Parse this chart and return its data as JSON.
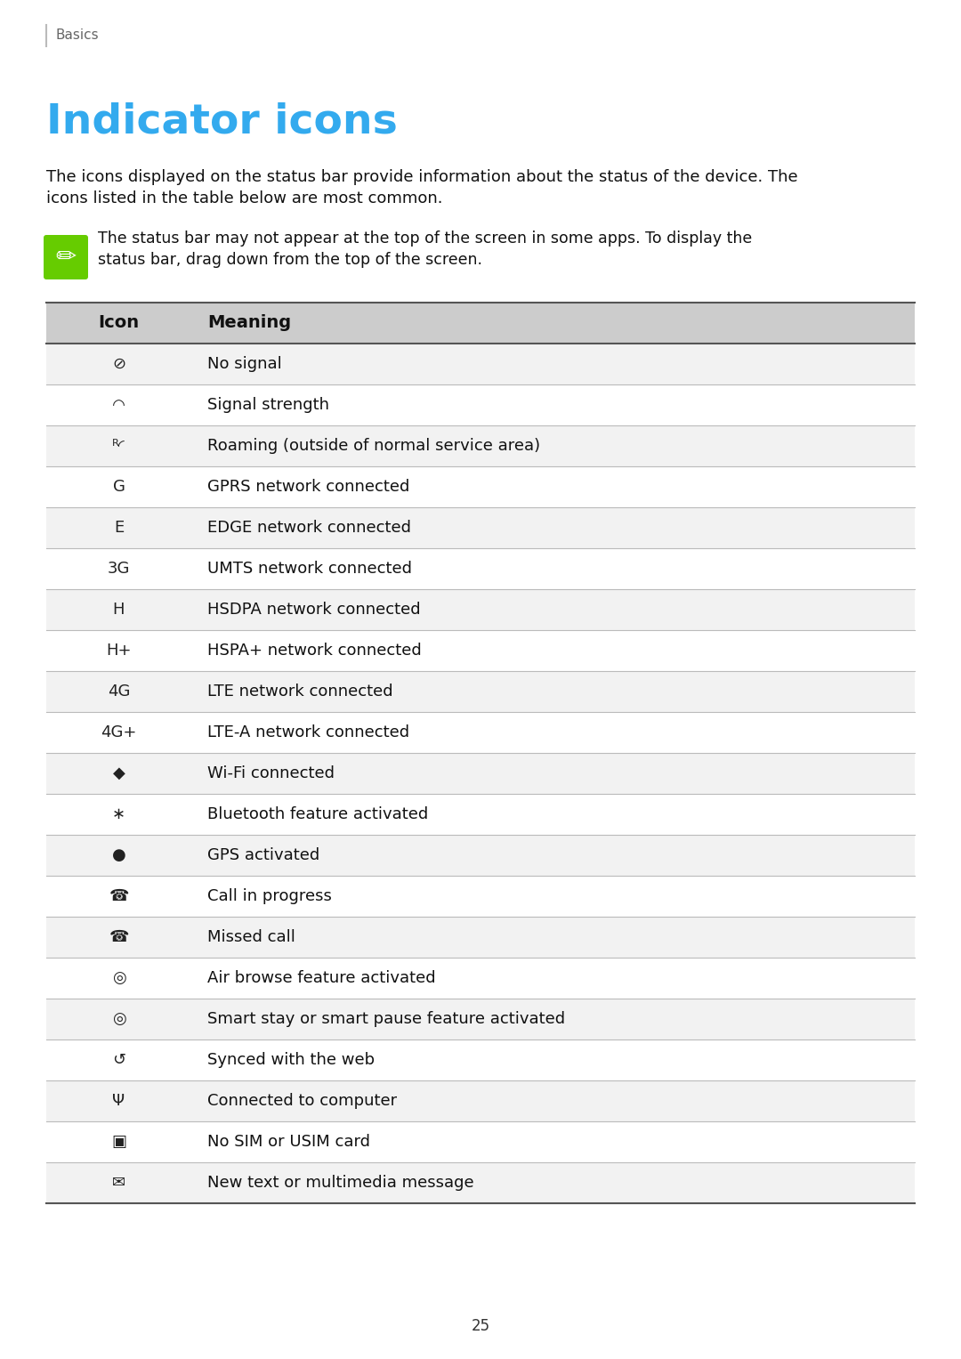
{
  "page_label": "Basics",
  "title": "Indicator icons",
  "title_color": "#33AAEE",
  "body_line1": "The icons displayed on the status bar provide information about the status of the device. The",
  "body_line2": "icons listed in the table below are most common.",
  "note_line1": "The status bar may not appear at the top of the screen in some apps. To display the",
  "note_line2": "status bar, drag down from the top of the screen.",
  "note_icon_color": "#66CC00",
  "header_bg": "#CCCCCC",
  "row_bg_alt": "#F2F2F2",
  "row_bg_norm": "#FFFFFF",
  "col_header": [
    "Icon",
    "Meaning"
  ],
  "meanings": [
    "No signal",
    "Signal strength",
    "Roaming (outside of normal service area)",
    "GPRS network connected",
    "EDGE network connected",
    "UMTS network connected",
    "HSDPA network connected",
    "HSPA+ network connected",
    "LTE network connected",
    "LTE-A network connected",
    "Wi-Fi connected",
    "Bluetooth feature activated",
    "GPS activated",
    "Call in progress",
    "Missed call",
    "Air browse feature activated",
    "Smart stay or smart pause feature activated",
    "Synced with the web",
    "Connected to computer",
    "No SIM or USIM card",
    "New text or multimedia message"
  ],
  "icon_texts": [
    "⊘",
    "◜◝",
    "ᴿ◜",
    "G",
    "E",
    "3G",
    "H",
    "H+",
    "4G",
    "4G+",
    "◆",
    "∗",
    "●",
    "☎",
    "☎",
    "◎",
    "◎",
    "↺",
    "Ψ",
    "▣",
    "✉"
  ],
  "page_number": "25",
  "bg_color": "#FFFFFF",
  "text_color": "#111111",
  "dark_line_color": "#555555",
  "light_line_color": "#BBBBBB"
}
